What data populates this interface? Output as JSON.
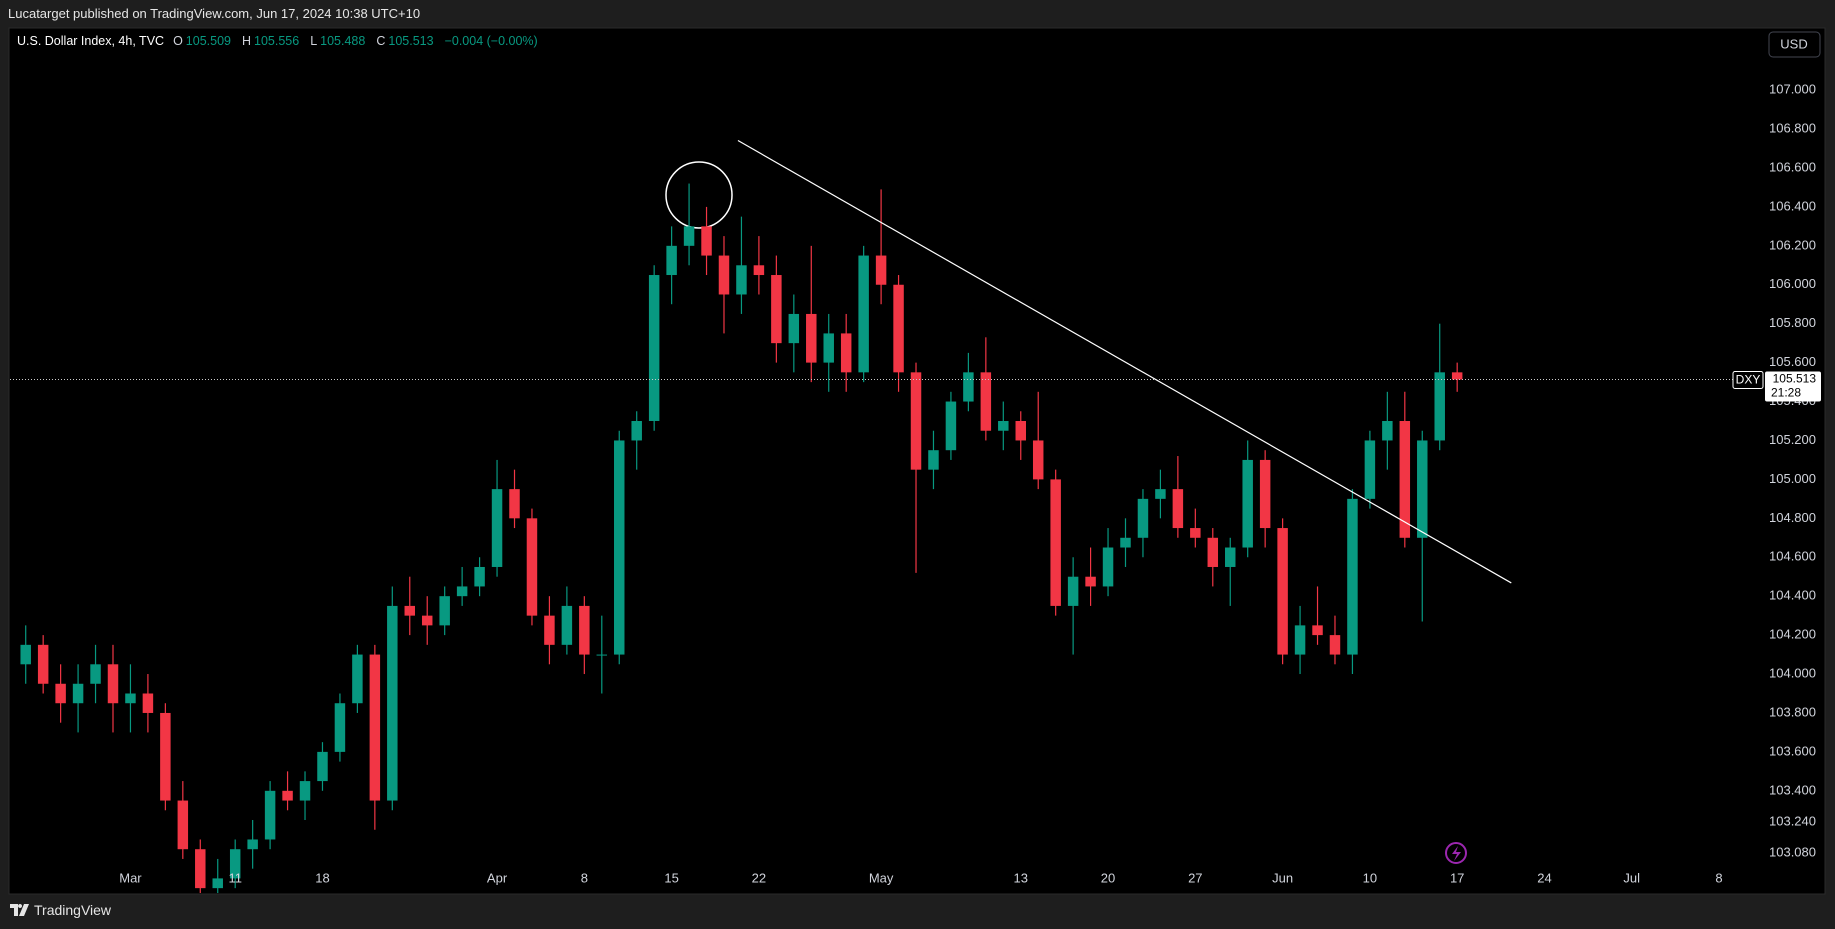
{
  "header": {
    "text": "Lucatarget published on TradingView.com, Jun 17, 2024 10:38 UTC+10"
  },
  "legend": {
    "symbol": "U.S. Dollar Index, 4h, TVC",
    "o_label": "O",
    "open": 105.509,
    "h_label": "H",
    "high": 105.556,
    "l_label": "L",
    "low": 105.488,
    "c_label": "C",
    "close": 105.513,
    "change": "−0.004 (−0.00%)"
  },
  "currency_button": "USD",
  "footer": {
    "brand": "TradingView"
  },
  "chart_data": {
    "type": "candlestick",
    "up_color": "#089981",
    "down_color": "#f23645",
    "x": [
      -2,
      -1,
      0,
      1,
      2,
      3,
      4,
      5,
      6,
      7,
      8,
      9,
      10,
      11,
      12,
      13,
      14,
      15,
      16,
      17,
      18,
      19,
      20,
      21,
      22,
      23,
      24,
      25,
      26,
      27,
      28,
      29,
      30,
      31,
      32,
      33,
      34,
      35,
      36,
      37,
      38,
      39,
      40,
      41,
      42,
      43,
      44,
      45,
      46,
      47,
      48,
      49,
      50,
      51,
      52,
      53,
      54,
      55,
      56,
      57,
      58,
      59,
      60,
      61,
      62,
      63,
      64,
      65,
      66,
      67,
      68,
      69,
      70,
      71,
      72,
      73,
      74,
      75,
      76,
      77,
      78,
      79,
      80
    ],
    "open": [
      104.05,
      104.15,
      103.95,
      103.85,
      103.95,
      104.05,
      103.85,
      103.9,
      103.8,
      103.35,
      103.1,
      102.9,
      102.95,
      103.1,
      103.15,
      103.4,
      103.35,
      103.45,
      103.6,
      103.85,
      104.1,
      103.35,
      104.35,
      104.3,
      104.25,
      104.4,
      104.45,
      104.55,
      104.95,
      104.8,
      104.3,
      104.15,
      104.35,
      104.1,
      104.1,
      105.2,
      105.3,
      106.05,
      106.2,
      106.3,
      106.15,
      105.95,
      106.1,
      106.05,
      105.7,
      105.85,
      105.6,
      105.75,
      105.55,
      106.15,
      106.0,
      105.55,
      105.05,
      105.15,
      105.4,
      105.55,
      105.25,
      105.3,
      105.2,
      105.0,
      104.35,
      104.5,
      104.45,
      104.65,
      104.7,
      104.9,
      104.95,
      104.75,
      104.7,
      104.55,
      104.65,
      105.1,
      104.75,
      104.1,
      104.25,
      104.2,
      104.1,
      104.9,
      105.2,
      105.3,
      104.7,
      105.2,
      105.55
    ],
    "high": [
      104.25,
      104.2,
      104.05,
      104.05,
      104.15,
      104.15,
      104.05,
      104.0,
      103.85,
      103.45,
      103.15,
      103.05,
      103.15,
      103.25,
      103.45,
      103.5,
      103.5,
      103.65,
      103.9,
      104.15,
      104.15,
      104.45,
      104.5,
      104.4,
      104.45,
      104.55,
      104.6,
      105.1,
      105.05,
      104.85,
      104.4,
      104.45,
      104.4,
      104.3,
      105.25,
      105.35,
      106.1,
      106.3,
      106.52,
      106.4,
      106.25,
      106.35,
      106.25,
      106.15,
      105.95,
      106.2,
      105.85,
      105.85,
      106.2,
      106.49,
      106.05,
      105.6,
      105.25,
      105.45,
      105.65,
      105.73,
      105.4,
      105.35,
      105.45,
      105.05,
      104.6,
      104.65,
      104.75,
      104.8,
      104.95,
      105.05,
      105.12,
      104.85,
      104.75,
      104.7,
      105.2,
      105.15,
      104.8,
      104.35,
      104.45,
      104.3,
      104.95,
      105.25,
      105.45,
      105.45,
      105.25,
      105.8,
      105.6
    ],
    "low": [
      103.95,
      103.9,
      103.75,
      103.7,
      103.85,
      103.7,
      103.7,
      103.7,
      103.3,
      103.05,
      102.85,
      102.8,
      102.9,
      103.0,
      103.1,
      103.3,
      103.25,
      103.4,
      103.55,
      103.8,
      103.2,
      103.3,
      104.2,
      104.15,
      104.2,
      104.35,
      104.4,
      104.5,
      104.75,
      104.25,
      104.05,
      104.1,
      104.0,
      103.9,
      104.05,
      105.05,
      105.25,
      105.9,
      106.1,
      106.05,
      105.75,
      105.85,
      105.95,
      105.6,
      105.55,
      105.5,
      105.45,
      105.45,
      105.5,
      105.9,
      105.45,
      104.52,
      104.95,
      105.1,
      105.35,
      105.2,
      105.15,
      105.1,
      104.95,
      104.3,
      104.1,
      104.35,
      104.4,
      104.55,
      104.6,
      104.8,
      104.7,
      104.65,
      104.45,
      104.35,
      104.6,
      104.65,
      104.05,
      104.0,
      104.15,
      104.05,
      104.0,
      104.85,
      105.05,
      104.65,
      104.27,
      105.15,
      105.45
    ],
    "close": [
      104.15,
      103.95,
      103.85,
      103.95,
      104.05,
      103.85,
      103.9,
      103.8,
      103.35,
      103.1,
      102.9,
      102.95,
      103.1,
      103.15,
      103.4,
      103.35,
      103.45,
      103.6,
      103.85,
      104.1,
      103.35,
      104.35,
      104.3,
      104.25,
      104.4,
      104.45,
      104.55,
      104.95,
      104.8,
      104.3,
      104.15,
      104.35,
      104.1,
      104.1,
      105.2,
      105.3,
      106.05,
      106.2,
      106.3,
      106.15,
      105.95,
      106.1,
      106.05,
      105.7,
      105.85,
      105.6,
      105.75,
      105.55,
      106.15,
      106.0,
      105.55,
      105.05,
      105.15,
      105.4,
      105.55,
      105.25,
      105.3,
      105.2,
      105.0,
      104.35,
      104.5,
      104.45,
      104.65,
      104.7,
      104.9,
      104.95,
      104.75,
      104.7,
      104.55,
      104.65,
      105.1,
      104.75,
      104.1,
      104.25,
      104.2,
      104.1,
      104.9,
      105.2,
      105.3,
      104.7,
      105.2,
      105.55,
      105.513
    ],
    "xlim": [
      -2.9,
      95.8
    ],
    "xticks": [
      {
        "value": 4,
        "label": "Mar"
      },
      {
        "value": 10,
        "label": "11"
      },
      {
        "value": 15,
        "label": "18"
      },
      {
        "value": 25,
        "label": "Apr"
      },
      {
        "value": 30,
        "label": "8"
      },
      {
        "value": 35,
        "label": "15"
      },
      {
        "value": 40,
        "label": "22"
      },
      {
        "value": 47,
        "label": "May"
      },
      {
        "value": 55,
        "label": "13"
      },
      {
        "value": 60,
        "label": "20"
      },
      {
        "value": 65,
        "label": "27"
      },
      {
        "value": 70,
        "label": "Jun"
      },
      {
        "value": 75,
        "label": "10"
      },
      {
        "value": 80,
        "label": "17"
      },
      {
        "value": 85,
        "label": "24"
      },
      {
        "value": 90,
        "label": "Jul"
      },
      {
        "value": 95,
        "label": "8"
      }
    ],
    "ylim": [
      102.875,
      107.314
    ],
    "yticks": [
      {
        "value": 107,
        "label": "107.000"
      },
      {
        "value": 106.8,
        "label": "106.800"
      },
      {
        "value": 106.6,
        "label": "106.600"
      },
      {
        "value": 106.4,
        "label": "106.400"
      },
      {
        "value": 106.2,
        "label": "106.200"
      },
      {
        "value": 106,
        "label": "106.000"
      },
      {
        "value": 105.8,
        "label": "105.800"
      },
      {
        "value": 105.6,
        "label": "105.600"
      },
      {
        "value": 105.4,
        "label": "105.400"
      },
      {
        "value": 105.2,
        "label": "105.200"
      },
      {
        "value": 105,
        "label": "105.000"
      },
      {
        "value": 104.8,
        "label": "104.800"
      },
      {
        "value": 104.6,
        "label": "104.600"
      },
      {
        "value": 104.4,
        "label": "104.400"
      },
      {
        "value": 104.2,
        "label": "104.200"
      },
      {
        "value": 104,
        "label": "104.000"
      },
      {
        "value": 103.8,
        "label": "103.800"
      },
      {
        "value": 103.6,
        "label": "103.600"
      },
      {
        "value": 103.4,
        "label": "103.400"
      },
      {
        "value": 103.24,
        "label": "103.240"
      },
      {
        "value": 103.08,
        "label": "103.080"
      }
    ],
    "grid": false,
    "trendline": {
      "x": [
        38.8,
        83.1
      ],
      "y": [
        106.741,
        104.468
      ],
      "color": "#ffffff"
    },
    "last_price": {
      "symbol": "DXY",
      "value": 105.513,
      "countdown": "21:28"
    }
  }
}
